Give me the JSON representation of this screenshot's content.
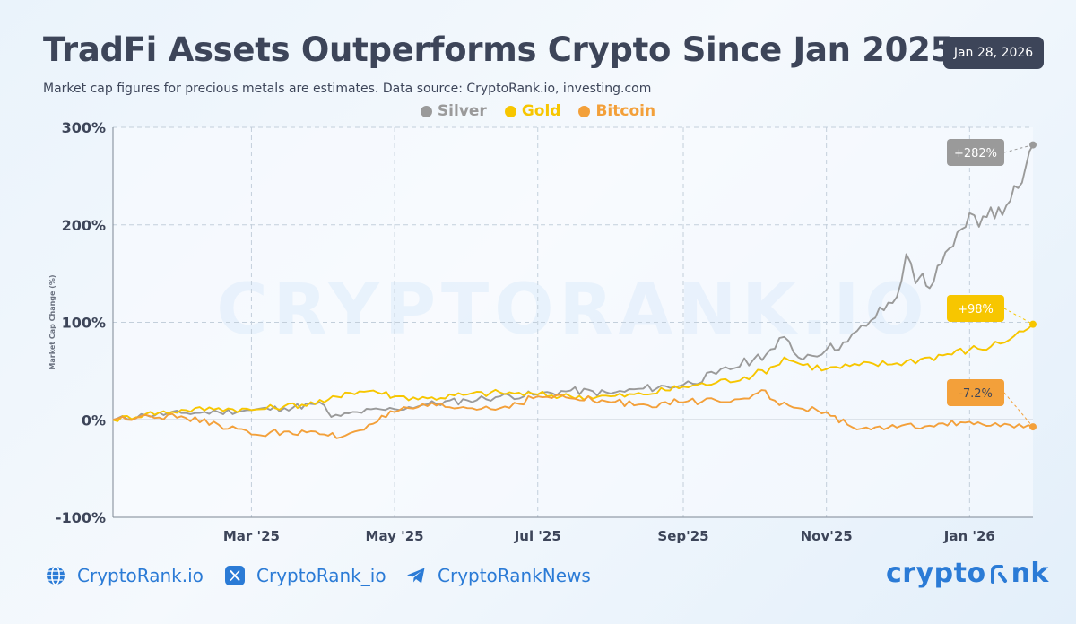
{
  "header": {
    "title": "TradFi Assets Outperforms Crypto Since Jan 2025",
    "subtitle": "Market cap figures for precious metals are estimates. Data source: CryptoRank.io, investing.com",
    "date": "Jan 28, 2026"
  },
  "colors": {
    "silver": "#9a9a9a",
    "gold": "#f7c600",
    "bitcoin": "#f3a03a",
    "text": "#3d4559",
    "accent": "#2b7bd6"
  },
  "watermark": "CRYPTORANK.IO",
  "footer": {
    "website": "CryptoRank.io",
    "twitter": "CryptoRank_io",
    "telegram": "CryptoRankNews",
    "brand_prefix": "crypto",
    "brand_suffix": "nk"
  },
  "chart_data": {
    "type": "line",
    "ylabel": "Market Cap Change (%)",
    "ylim": [
      -100,
      300
    ],
    "yticks": [
      -100,
      0,
      100,
      200,
      300
    ],
    "ytick_labels": [
      "-100%",
      "0%",
      "100%",
      "200%",
      "300%"
    ],
    "xlim": [
      "2025-01-01",
      "2026-01-28"
    ],
    "xticks": [
      "2025-03-01",
      "2025-05-01",
      "2025-07-01",
      "2025-09-01",
      "2025-11-01",
      "2026-01-01"
    ],
    "xtick_labels": [
      "Mar '25",
      "May '25",
      "Jul '25",
      "Sep'25",
      "Nov'25",
      "Jan '26"
    ],
    "grid": true,
    "legend": "top-center",
    "series": [
      {
        "name": "Silver",
        "end_label": "+282%",
        "x": [
          "2025-01-01",
          "2025-01-15",
          "2025-02-01",
          "2025-02-15",
          "2025-03-01",
          "2025-03-15",
          "2025-03-28",
          "2025-04-01",
          "2025-04-04",
          "2025-04-08",
          "2025-04-15",
          "2025-05-01",
          "2025-05-15",
          "2025-06-01",
          "2025-06-15",
          "2025-07-01",
          "2025-07-15",
          "2025-08-01",
          "2025-08-15",
          "2025-09-01",
          "2025-09-15",
          "2025-10-01",
          "2025-10-10",
          "2025-10-14",
          "2025-10-20",
          "2025-11-01",
          "2025-11-10",
          "2025-11-20",
          "2025-12-01",
          "2025-12-05",
          "2025-12-09",
          "2025-12-12",
          "2025-12-15",
          "2025-12-20",
          "2025-12-25",
          "2026-01-01",
          "2026-01-05",
          "2026-01-10",
          "2026-01-15",
          "2026-01-20",
          "2026-01-25",
          "2026-01-28"
        ],
        "y": [
          0,
          5,
          7,
          8,
          10,
          12,
          16,
          15,
          3,
          4,
          8,
          11,
          16,
          20,
          24,
          26,
          30,
          27,
          32,
          36,
          47,
          62,
          73,
          85,
          64,
          72,
          80,
          102,
          126,
          170,
          140,
          150,
          135,
          160,
          178,
          212,
          198,
          218,
          210,
          240,
          260,
          282
        ]
      },
      {
        "name": "Gold",
        "end_label": "+98%",
        "x": [
          "2025-01-01",
          "2025-01-15",
          "2025-02-01",
          "2025-02-15",
          "2025-03-01",
          "2025-03-15",
          "2025-04-01",
          "2025-04-10",
          "2025-04-22",
          "2025-05-01",
          "2025-05-15",
          "2025-06-01",
          "2025-06-15",
          "2025-07-01",
          "2025-07-15",
          "2025-08-01",
          "2025-08-15",
          "2025-09-01",
          "2025-09-15",
          "2025-10-01",
          "2025-10-10",
          "2025-10-14",
          "2025-10-20",
          "2025-11-01",
          "2025-11-15",
          "2025-12-01",
          "2025-12-15",
          "2026-01-01",
          "2026-01-10",
          "2026-01-20",
          "2026-01-28"
        ],
        "y": [
          0,
          6,
          10,
          12,
          10,
          14,
          18,
          28,
          30,
          24,
          22,
          26,
          28,
          26,
          24,
          24,
          26,
          34,
          38,
          46,
          55,
          64,
          58,
          52,
          56,
          58,
          64,
          72,
          75,
          86,
          98
        ]
      },
      {
        "name": "Bitcoin",
        "end_label": "-7.2%",
        "x": [
          "2025-01-01",
          "2025-01-15",
          "2025-02-01",
          "2025-02-15",
          "2025-03-01",
          "2025-03-15",
          "2025-04-01",
          "2025-04-08",
          "2025-04-20",
          "2025-05-01",
          "2025-05-15",
          "2025-06-01",
          "2025-06-15",
          "2025-07-01",
          "2025-07-15",
          "2025-08-01",
          "2025-08-15",
          "2025-09-01",
          "2025-09-15",
          "2025-10-01",
          "2025-10-06",
          "2025-10-12",
          "2025-10-20",
          "2025-11-01",
          "2025-11-10",
          "2025-11-20",
          "2025-12-01",
          "2025-12-15",
          "2026-01-01",
          "2026-01-10",
          "2026-01-20",
          "2026-01-28"
        ],
        "y": [
          0,
          5,
          2,
          -5,
          -15,
          -12,
          -15,
          -18,
          -5,
          8,
          14,
          12,
          12,
          24,
          22,
          18,
          16,
          18,
          20,
          26,
          30,
          15,
          12,
          8,
          -5,
          -10,
          -8,
          -6,
          -2,
          -6,
          -8,
          -7.2
        ]
      }
    ]
  }
}
